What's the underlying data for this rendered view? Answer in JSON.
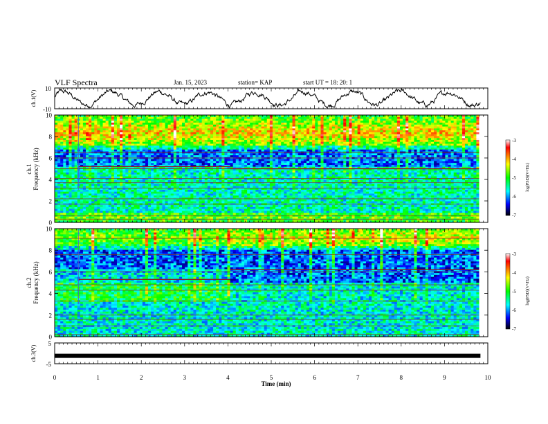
{
  "header": {
    "title": "VLF Spectra",
    "date": "Jan. 15, 2023",
    "station": "station= KAP",
    "start_ut": "start  UT  =   18: 20: 1"
  },
  "chart_data": [
    {
      "type": "line",
      "panel": "ch1-waveform",
      "ylabel": "ch.1(V)",
      "ylim": [
        -10,
        10
      ],
      "yticks": [
        "10",
        "-10"
      ],
      "xlim": [
        0,
        10
      ]
    },
    {
      "type": "heatmap",
      "panel": "ch1-spectrogram",
      "ylabel": "ch.1\nFrequency (kHz)",
      "ylim": [
        0,
        10
      ],
      "yticks": [
        "0",
        "2",
        "4",
        "6",
        "8",
        "10"
      ],
      "xlim": [
        0,
        10
      ],
      "data_end_min": 9.8,
      "colorbar": {
        "label": "log(PSD)(V²/Hz)",
        "range": [
          -7,
          -3
        ],
        "ticks": [
          "-3",
          "-4",
          "-5",
          "-6",
          "-7"
        ]
      },
      "background_level": -5.5,
      "emission_lines_khz": [
        0.3,
        0.6,
        1.7,
        2.2,
        3.2,
        3.7,
        4.1,
        5.0,
        6.0,
        6.5
      ],
      "bright_bands_khz": [
        [
          0.0,
          0.9
        ],
        [
          6.7,
          10.0
        ]
      ],
      "step_event": {
        "time_min": 4.05,
        "freq_before_khz": 5.2,
        "freq_after_khz": 5.0
      }
    },
    {
      "type": "heatmap",
      "panel": "ch2-spectrogram",
      "ylabel": "ch.2\nFrequency (kHz)",
      "ylim": [
        0,
        10
      ],
      "yticks": [
        "0",
        "2",
        "4",
        "6",
        "8",
        "10"
      ],
      "xlim": [
        0,
        10
      ],
      "data_end_min": 9.8,
      "colorbar": {
        "label": "log(PSD)(V²/Hz)",
        "range": [
          -7,
          -3
        ],
        "ticks": [
          "-3",
          "-4",
          "-5",
          "-6",
          "-7"
        ]
      },
      "background_level": -5.6,
      "emission_lines_khz": [
        0.2,
        1.0,
        1.6,
        2.0,
        3.3,
        4.3,
        4.8,
        6.0,
        7.6,
        9.1
      ],
      "bright_bands_khz": [
        [
          8.4,
          10.0
        ]
      ],
      "step_event": {
        "time_min": 4.05,
        "freq_before_khz": 5.3,
        "freq_after_khz": 6.2
      }
    },
    {
      "type": "line",
      "panel": "ch3-signal",
      "ylabel": "ch.3(V)",
      "ylim": [
        -5,
        5
      ],
      "yticks": [
        "5",
        "-5"
      ],
      "xlim": [
        0,
        10
      ],
      "xlabel": "Time  (min)",
      "xticks": [
        "0",
        "1",
        "2",
        "3",
        "4",
        "5",
        "6",
        "7",
        "8",
        "9",
        "10"
      ],
      "level_v": -1.2
    }
  ]
}
